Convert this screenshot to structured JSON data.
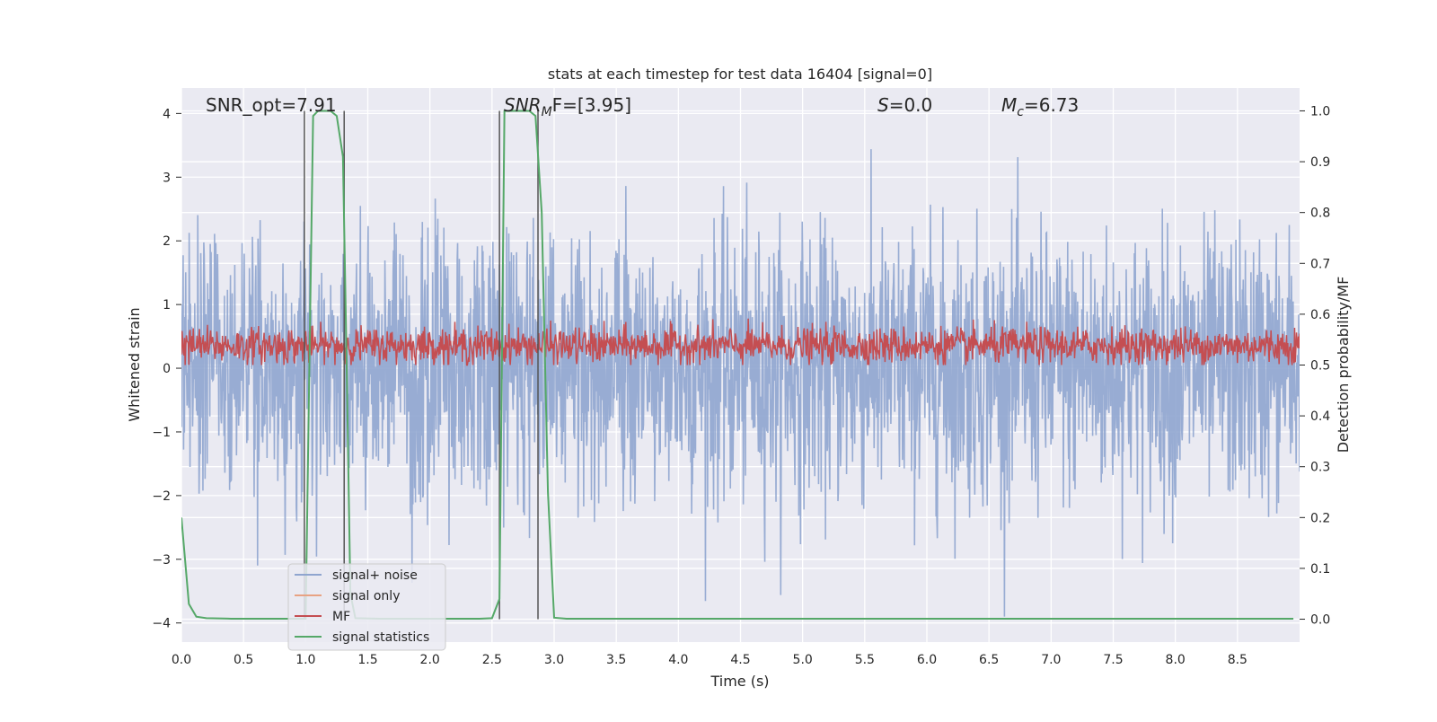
{
  "chart_data": {
    "type": "line",
    "title": "stats at each timestep for test data 16404 [signal=0]",
    "xlabel": "Time (s)",
    "ylabel_left": "Whitened strain",
    "ylabel_right": "Detection probability/MF",
    "xlim": [
      0.0,
      9.0
    ],
    "ylim_left": [
      -4.3,
      4.4
    ],
    "ylim_right": [
      -0.045,
      1.045
    ],
    "x_ticks": [
      "0.0",
      "0.5",
      "1.0",
      "1.5",
      "2.0",
      "2.5",
      "3.0",
      "3.5",
      "4.0",
      "4.5",
      "5.0",
      "5.5",
      "6.0",
      "6.5",
      "7.0",
      "7.5",
      "8.0",
      "8.5"
    ],
    "y_ticks_left": [
      "4",
      "3",
      "2",
      "1",
      "0",
      "−1",
      "−2",
      "−3",
      "−4"
    ],
    "y_ticks_right": [
      "1.0",
      "0.9",
      "0.8",
      "0.7",
      "0.6",
      "0.5",
      "0.4",
      "0.3",
      "0.2",
      "0.1",
      "0.0"
    ],
    "grid": true,
    "annotations": {
      "snr_opt": "SNR_opt=7.91",
      "snr_mf_main": "SNR",
      "snr_mf_sub": "M",
      "snr_mf_rest": "F=[3.95]",
      "s_label": "S",
      "s_value": "=0.0",
      "mc_main": "M",
      "mc_sub": "c",
      "mc_value": "=6.73"
    },
    "legend_position": "lower-left",
    "series": [
      {
        "name": "signal+ noise",
        "axis": "left",
        "color": "#8fa5cf",
        "description_values": "white noise, approx range [-3.9, 4.0]"
      },
      {
        "name": "signal only",
        "axis": "left",
        "color": "#e8a283",
        "values": []
      },
      {
        "name": "MF",
        "axis": "right",
        "color": "#c44e52",
        "description_values": "noise-like, approx range [0.50, 0.60]"
      },
      {
        "name": "signal statistics",
        "axis": "right",
        "color": "#55a868",
        "x": [
          0.0,
          0.06,
          0.12,
          0.2,
          0.4,
          0.6,
          1.0,
          1.03,
          1.06,
          1.1,
          1.2,
          1.25,
          1.3,
          1.33,
          1.36,
          1.4,
          1.6,
          2.0,
          2.4,
          2.5,
          2.56,
          2.6,
          2.7,
          2.8,
          2.85,
          2.9,
          2.95,
          3.0,
          3.1,
          3.5,
          4.0,
          5.0,
          6.0,
          7.0,
          8.0,
          8.95
        ],
        "y": [
          0.2,
          0.03,
          0.005,
          0.002,
          0.001,
          0.001,
          0.001,
          0.5,
          0.99,
          1.0,
          1.0,
          0.99,
          0.91,
          0.5,
          0.05,
          0.002,
          0.001,
          0.001,
          0.001,
          0.002,
          0.04,
          1.0,
          1.0,
          1.0,
          0.99,
          0.8,
          0.25,
          0.003,
          0.001,
          0.001,
          0.001,
          0.001,
          0.001,
          0.001,
          0.001,
          0.001
        ]
      }
    ],
    "vertical_lines_x": [
      0.99,
      1.31,
      2.56,
      2.87
    ]
  }
}
